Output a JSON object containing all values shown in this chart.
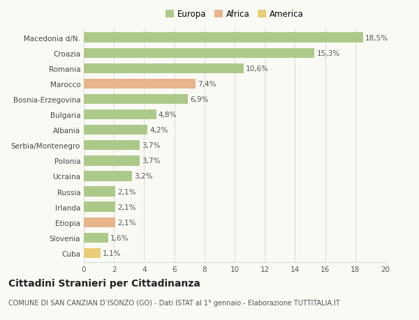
{
  "categories": [
    "Macedonia d/N.",
    "Croazia",
    "Romania",
    "Marocco",
    "Bosnia-Erzegovina",
    "Bulgaria",
    "Albania",
    "Serbia/Montenegro",
    "Polonia",
    "Ucraina",
    "Russia",
    "Irlanda",
    "Etiopia",
    "Slovenia",
    "Cuba"
  ],
  "values": [
    18.5,
    15.3,
    10.6,
    7.4,
    6.9,
    4.8,
    4.2,
    3.7,
    3.7,
    3.2,
    2.1,
    2.1,
    2.1,
    1.6,
    1.1
  ],
  "colors": [
    "#adc98a",
    "#adc98a",
    "#adc98a",
    "#e8b48a",
    "#adc98a",
    "#adc98a",
    "#adc98a",
    "#adc98a",
    "#adc98a",
    "#adc98a",
    "#adc98a",
    "#adc98a",
    "#e8b48a",
    "#adc98a",
    "#e8cc78"
  ],
  "legend_labels": [
    "Europa",
    "Africa",
    "America"
  ],
  "legend_colors": [
    "#adc98a",
    "#e8b48a",
    "#e8cc78"
  ],
  "xlim": [
    0,
    20
  ],
  "xticks": [
    0,
    2,
    4,
    6,
    8,
    10,
    12,
    14,
    16,
    18,
    20
  ],
  "title": "Cittadini Stranieri per Cittadinanza",
  "subtitle": "COMUNE DI SAN CANZIAN D’ISONZO (GO) - Dati ISTAT al 1° gennaio - Elaborazione TUTTITALIA.IT",
  "background_color": "#fafaf5",
  "grid_color": "#d8d8d8",
  "bar_height": 0.65,
  "label_fontsize": 7.5,
  "value_fontsize": 7.5,
  "title_fontsize": 10,
  "subtitle_fontsize": 7
}
